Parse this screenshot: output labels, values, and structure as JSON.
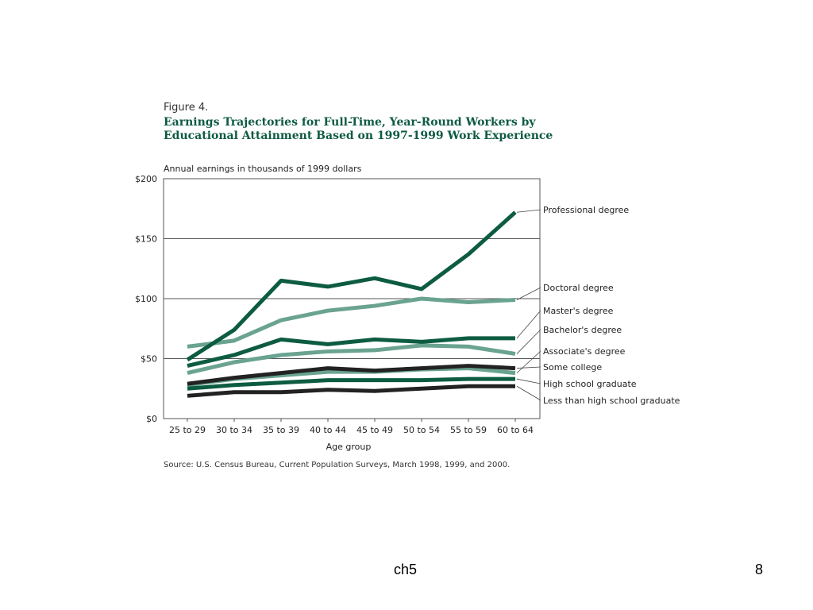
{
  "figure": {
    "label": "Figure 4.",
    "title": "Earnings Trajectories for Full-Time, Year-Round Workers by Educational Attainment Based on 1997-1999 Work Experience",
    "source": "Source: U.S. Census Bureau, Current Population Surveys, March 1998, 1999, and 2000."
  },
  "footer": {
    "center_text": "ch5",
    "page_number": "8"
  },
  "chart_data": {
    "type": "line",
    "title": "Earnings Trajectories for Full-Time, Year-Round Workers by Educational Attainment Based on 1997-1999 Work Experience",
    "subtitle": "Annual earnings in thousands of 1999 dollars",
    "xlabel": "Age group",
    "ylabel": "",
    "categories": [
      "25 to 29",
      "30 to 34",
      "35 to 39",
      "40 to 44",
      "45 to 49",
      "50 to 54",
      "55 to 59",
      "60 to 64"
    ],
    "ylim": [
      0,
      200
    ],
    "yticks": [
      0,
      50,
      100,
      150,
      200
    ],
    "ytick_labels": [
      "$0",
      "$50",
      "$100",
      "$150",
      "$200"
    ],
    "grid": "horizontal",
    "legend_placement": "right, direct labels",
    "series": [
      {
        "name": "Professional degree",
        "color": "#0d5c42",
        "values": [
          49,
          74,
          115,
          110,
          117,
          108,
          137,
          172
        ]
      },
      {
        "name": "Doctoral degree",
        "color": "#6aa391",
        "values": [
          60,
          65,
          82,
          90,
          94,
          100,
          97,
          99
        ]
      },
      {
        "name": "Master's degree",
        "color": "#0d5c42",
        "values": [
          44,
          53,
          66,
          62,
          66,
          64,
          67,
          67
        ]
      },
      {
        "name": "Bachelor's degree",
        "color": "#6aa391",
        "values": [
          38,
          47,
          53,
          56,
          57,
          61,
          60,
          54
        ]
      },
      {
        "name": "Associate's degree",
        "color": "#6aa391",
        "values": [
          28,
          33,
          36,
          39,
          39,
          41,
          42,
          38
        ]
      },
      {
        "name": "Some college",
        "color": "#222222",
        "values": [
          29,
          34,
          38,
          42,
          40,
          42,
          44,
          42
        ]
      },
      {
        "name": "High school graduate",
        "color": "#0d5c42",
        "values": [
          25,
          28,
          30,
          32,
          32,
          32,
          33,
          33
        ]
      },
      {
        "name": "Less than high school graduate",
        "color": "#222222",
        "values": [
          19,
          22,
          22,
          24,
          23,
          25,
          27,
          27
        ]
      }
    ]
  }
}
